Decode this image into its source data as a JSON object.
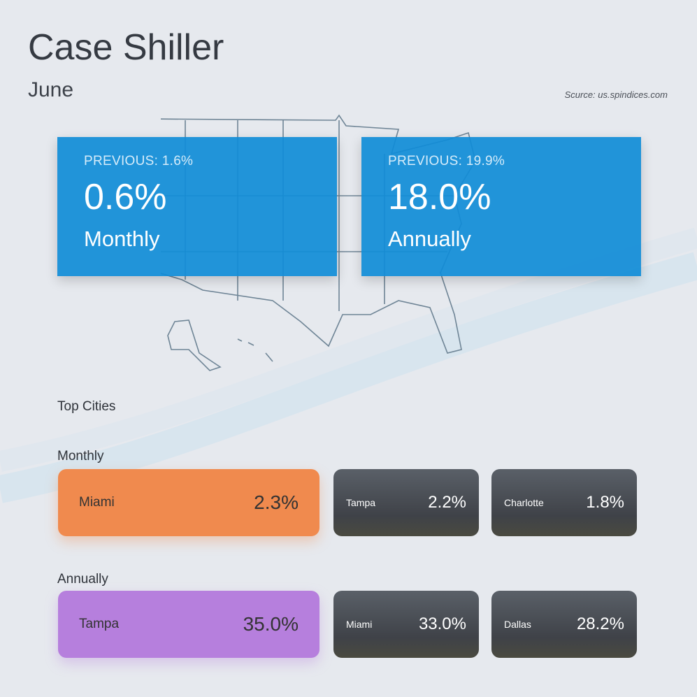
{
  "header": {
    "title": "Case Shiller",
    "subtitle": "June",
    "source": "Scurce: us.spindices.com"
  },
  "stats": [
    {
      "previous": "PREVIOUS: 1.6%",
      "value": "0.6%",
      "label": "Monthly"
    },
    {
      "previous": "PREVIOUS: 19.9%",
      "value": "18.0%",
      "label": "Annually"
    }
  ],
  "top_cities": {
    "heading": "Top Cities",
    "monthly": {
      "label": "Monthly",
      "cities": [
        {
          "city": "Miami",
          "pct": "2.3%"
        },
        {
          "city": "Tampa",
          "pct": "2.2%"
        },
        {
          "city": "Charlotte",
          "pct": "1.8%"
        }
      ]
    },
    "annually": {
      "label": "Annually",
      "cities": [
        {
          "city": "Tampa",
          "pct": "35.0%"
        },
        {
          "city": "Miami",
          "pct": "33.0%"
        },
        {
          "city": "Dallas",
          "pct": "28.2%"
        }
      ]
    }
  },
  "colors": {
    "stat_blue": "#108cd7",
    "monthly_top": "#f08a4e",
    "annual_top": "#b67fdd"
  }
}
